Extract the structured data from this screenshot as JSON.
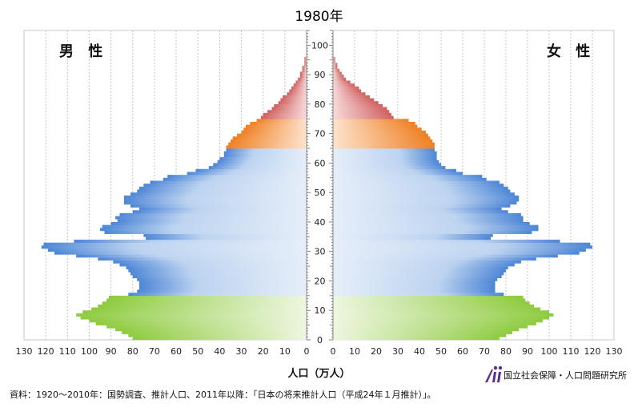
{
  "title": "1980年",
  "label_male": "男 性",
  "label_female": "女 性",
  "x_axis_label": "人口（万人）",
  "source_note": "資料：1920～2010年：国勢調査、推計人口、2011年以降：「日本の将来推計人口（平成24年１月推計）」。",
  "organization": "国立社会保障・人口問題研究所",
  "colors": {
    "age_0_14": "#8ecb3f",
    "age_15_64": "#5a8fd8",
    "age_65_74": "#ef7f22",
    "age_75_plus": "#cf5f5f"
  },
  "chart_data": {
    "type": "bar",
    "orientation": "horizontal",
    "layout": "population-pyramid",
    "age_axis": {
      "min": 0,
      "max": 105,
      "ticks": [
        0,
        10,
        20,
        30,
        40,
        50,
        60,
        70,
        80,
        90,
        100
      ]
    },
    "value_axis": {
      "min": 0,
      "max": 130,
      "unit": "万人",
      "ticks": [
        0,
        10,
        20,
        30,
        40,
        50,
        60,
        70,
        80,
        90,
        100,
        110,
        120,
        130
      ]
    },
    "grid": true,
    "age_groups": [
      {
        "range": [
          0,
          14
        ],
        "color_key": "age_0_14"
      },
      {
        "range": [
          15,
          64
        ],
        "color_key": "age_15_64"
      },
      {
        "range": [
          65,
          74
        ],
        "color_key": "age_65_74"
      },
      {
        "range": [
          75,
          100
        ],
        "color_key": "age_75_plus"
      }
    ],
    "ages": [
      0,
      1,
      2,
      3,
      4,
      5,
      6,
      7,
      8,
      9,
      10,
      11,
      12,
      13,
      14,
      15,
      16,
      17,
      18,
      19,
      20,
      21,
      22,
      23,
      24,
      25,
      26,
      27,
      28,
      29,
      30,
      31,
      32,
      33,
      34,
      35,
      36,
      37,
      38,
      39,
      40,
      41,
      42,
      43,
      44,
      45,
      46,
      47,
      48,
      49,
      50,
      51,
      52,
      53,
      54,
      55,
      56,
      57,
      58,
      59,
      60,
      61,
      62,
      63,
      64,
      65,
      66,
      67,
      68,
      69,
      70,
      71,
      72,
      73,
      74,
      75,
      76,
      77,
      78,
      79,
      80,
      81,
      82,
      83,
      84,
      85,
      86,
      87,
      88,
      89,
      90,
      91,
      92,
      93,
      94,
      95,
      96,
      97,
      98,
      99,
      100
    ],
    "series": [
      {
        "name": "男 性",
        "values": [
          80,
          82,
          85,
          88,
          92,
          97,
          100,
          104,
          106,
          103,
          99,
          96,
          94,
          92,
          91,
          82,
          78,
          77,
          77,
          77,
          78,
          80,
          81,
          82,
          83,
          86,
          89,
          96,
          106,
          116,
          119,
          122,
          121,
          107,
          74,
          75,
          93,
          95,
          94,
          90,
          87,
          88,
          86,
          80,
          77,
          81,
          84,
          84,
          84,
          81,
          78,
          77,
          75,
          72,
          66,
          64,
          55,
          51,
          45,
          43,
          41,
          40,
          38,
          38,
          37,
          37,
          36,
          35,
          34,
          32,
          30,
          29,
          28,
          26,
          23,
          21,
          20,
          18,
          16,
          15,
          13,
          12,
          11,
          9,
          8,
          7,
          6,
          5,
          4,
          3,
          3,
          2,
          2,
          1,
          1,
          1,
          0,
          0,
          0,
          0,
          0
        ]
      },
      {
        "name": "女 性",
        "values": [
          77,
          80,
          83,
          86,
          90,
          94,
          97,
          100,
          102,
          100,
          96,
          93,
          91,
          89,
          88,
          79,
          75,
          75,
          75,
          75,
          76,
          78,
          79,
          80,
          81,
          84,
          87,
          94,
          104,
          114,
          117,
          120,
          119,
          105,
          73,
          74,
          92,
          95,
          95,
          91,
          88,
          88,
          87,
          81,
          78,
          82,
          85,
          86,
          86,
          84,
          82,
          81,
          79,
          77,
          71,
          69,
          60,
          57,
          52,
          50,
          49,
          48,
          48,
          48,
          47,
          47,
          47,
          46,
          45,
          44,
          43,
          41,
          39,
          38,
          35,
          28,
          27,
          26,
          25,
          23,
          21,
          19,
          17,
          15,
          13,
          12,
          10,
          8,
          6,
          5,
          4,
          3,
          2,
          2,
          1,
          1,
          0,
          0,
          0,
          0,
          0
        ]
      }
    ]
  }
}
